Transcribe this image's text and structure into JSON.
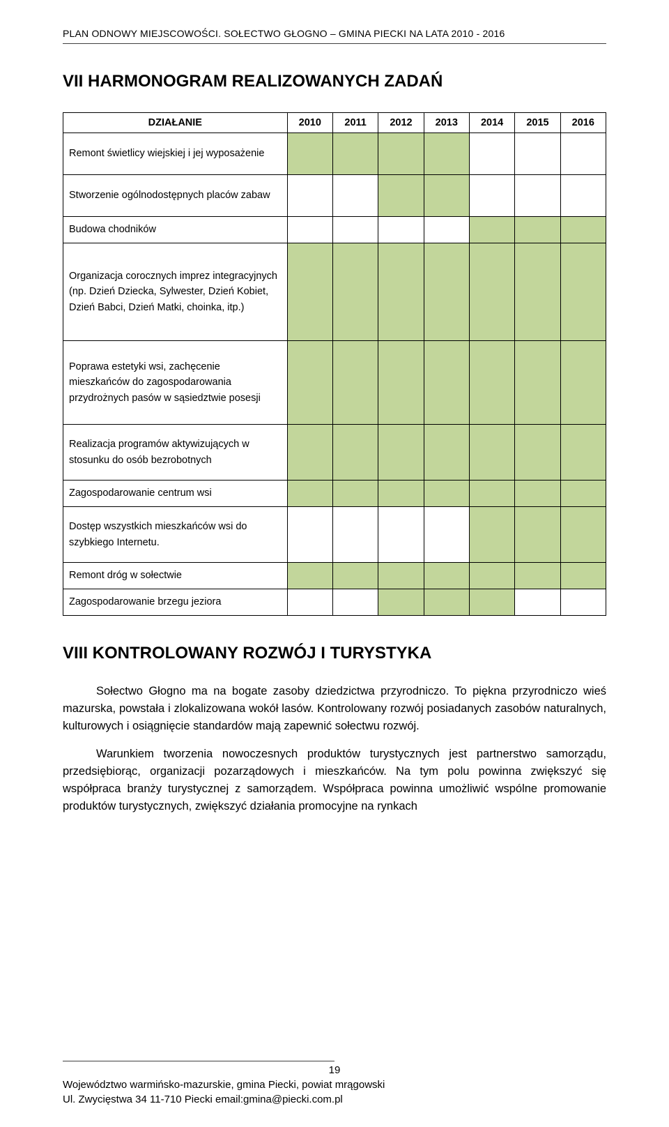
{
  "header": "PLAN ODNOWY MIEJSCOWOŚCI. SOŁECTWO GŁOGNO – GMINA PIECKI NA LATA 2010 - 2016",
  "section7_title": "VII HARMONOGRAM REALIZOWANYCH ZADAŃ",
  "table": {
    "action_header": "DZIAŁANIE",
    "years": [
      "2010",
      "2011",
      "2012",
      "2013",
      "2014",
      "2015",
      "2016"
    ],
    "fill_color": "#c2d69b",
    "rows": [
      {
        "label": "Remont świetlicy wiejskiej i jej wyposażenie",
        "fill": [
          1,
          1,
          1,
          1,
          0,
          0,
          0
        ]
      },
      {
        "label": "Stworzenie ogólnodostępnych placów zabaw",
        "fill": [
          0,
          0,
          1,
          1,
          0,
          0,
          0
        ]
      },
      {
        "label": "Budowa chodników",
        "fill": [
          0,
          0,
          0,
          0,
          1,
          1,
          1
        ]
      },
      {
        "label": "Organizacja corocznych imprez integracyjnych (np. Dzień Dziecka, Sylwester, Dzień Kobiet, Dzień Babci, Dzień Matki, choinka, itp.)",
        "fill": [
          1,
          1,
          1,
          1,
          1,
          1,
          1
        ]
      },
      {
        "label": "Poprawa estetyki wsi, zachęcenie mieszkańców do zagospodarowania przydrożnych pasów w sąsiedztwie posesji",
        "fill": [
          1,
          1,
          1,
          1,
          1,
          1,
          1
        ]
      },
      {
        "label": "Realizacja programów aktywizujących w stosunku do osób bezrobotnych",
        "fill": [
          1,
          1,
          1,
          1,
          1,
          1,
          1
        ]
      },
      {
        "label": "Zagospodarowanie centrum wsi",
        "fill": [
          1,
          1,
          1,
          1,
          1,
          1,
          1
        ]
      },
      {
        "label": "Dostęp wszystkich mieszkańców wsi do szybkiego Internetu.",
        "fill": [
          0,
          0,
          0,
          0,
          1,
          1,
          1
        ]
      },
      {
        "label": "Remont dróg w sołectwie",
        "fill": [
          1,
          1,
          1,
          1,
          1,
          1,
          1
        ]
      },
      {
        "label": "Zagospodarowanie brzegu jeziora",
        "fill": [
          0,
          0,
          1,
          1,
          1,
          0,
          0
        ]
      }
    ]
  },
  "section8_title": "VIII  KONTROLOWANY ROZWÓJ I TURYSTYKA",
  "para1": "Sołectwo Głogno ma  na bogate zasoby dziedzictwa przyrodniczo. To piękna przyrodniczo wieś mazurska, powstała i zlokalizowana wokół lasów. Kontrolowany rozwój posiadanych zasobów naturalnych, kulturowych i osiągnięcie standardów mają zapewnić sołectwu rozwój.",
  "para2": "Warunkiem tworzenia nowoczesnych produktów turystycznych jest partnerstwo samorządu, przedsiębiorąc, organizacji pozarządowych i mieszkańców. Na tym polu powinna zwiększyć się współpraca branży turystycznej z samorządem. Współpraca powinna umożliwić wspólne promowanie produktów turystycznych, zwiększyć działania promocyjne na rynkach",
  "footer": {
    "page": "19",
    "line1": "Województwo warmińsko-mazurskie, gmina Piecki, powiat mrągowski",
    "line2": "Ul. Zwycięstwa 34 11-710 Piecki  email:gmina@piecki.com.pl"
  }
}
